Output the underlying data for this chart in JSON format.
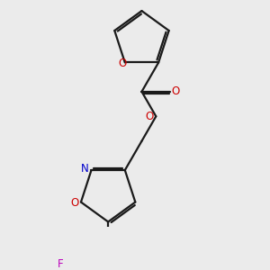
{
  "background_color": "#ebebeb",
  "bond_color": "#1a1a1a",
  "oxygen_color": "#cc0000",
  "nitrogen_color": "#0000cc",
  "fluorine_color": "#bb00bb",
  "line_width": 1.6,
  "figsize": [
    3.0,
    3.0
  ],
  "dpi": 100,
  "xlim": [
    0,
    10
  ],
  "ylim": [
    0,
    10
  ]
}
